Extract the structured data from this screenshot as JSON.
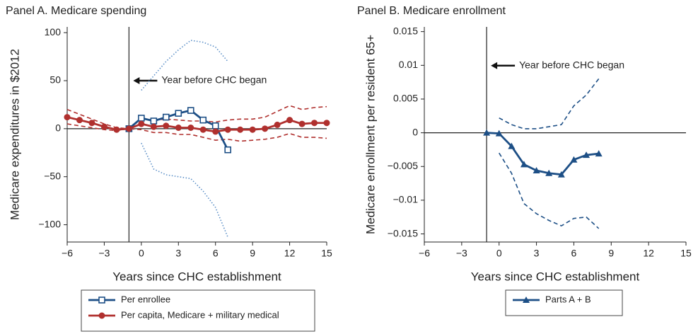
{
  "chart_data": [
    {
      "type": "line",
      "title": "Panel A. Medicare spending",
      "y_label": "Medicare expenditures in $2012",
      "x_label": "Years since CHC establishment",
      "annotation": "Year before CHC began",
      "vline": -1,
      "hline": 0,
      "xlim": [
        -6,
        15
      ],
      "ylim": [
        -118,
        106
      ],
      "xticks": [
        {
          "value": -6,
          "label": "−6"
        },
        {
          "value": -3,
          "label": "−3"
        },
        0,
        3,
        6,
        9,
        12,
        15
      ],
      "yticks": [
        {
          "value": -100,
          "label": "−100"
        },
        {
          "value": -50,
          "label": "−50"
        },
        0,
        50,
        100
      ],
      "series": [
        {
          "name": "Per enrollee",
          "color": "#1d4f86",
          "marker": "square-open",
          "ci_color": "#5b8fc7",
          "ci_style": "dotted",
          "x": [
            -1,
            0,
            1,
            2,
            3,
            4,
            5,
            6,
            7
          ],
          "values": [
            0,
            11,
            8,
            12,
            16,
            19,
            9,
            3,
            -22
          ],
          "upper": [
            null,
            40,
            55,
            70,
            82,
            92,
            90,
            85,
            70
          ],
          "lower": [
            null,
            -15,
            -42,
            -48,
            -50,
            -52,
            -65,
            -82,
            -113
          ]
        },
        {
          "name": "Per capita, Medicare + military medical",
          "color": "#b0302e",
          "marker": "circle",
          "ci_color": "#b0302e",
          "ci_style": "dashed",
          "x": [
            -6,
            -5,
            -4,
            -3,
            -2,
            -1,
            0,
            1,
            2,
            3,
            4,
            5,
            6,
            7,
            8,
            9,
            10,
            11,
            12,
            13,
            14,
            15
          ],
          "values": [
            12,
            9,
            6,
            2,
            -1,
            0,
            5,
            2,
            3,
            1,
            1,
            -1,
            -3,
            -1,
            -1,
            -1,
            0,
            4,
            9,
            5,
            6,
            6
          ],
          "upper": [
            20,
            15,
            10,
            5,
            1,
            0,
            10,
            9,
            10,
            9,
            8,
            8,
            7,
            9,
            10,
            10,
            12,
            18,
            24,
            20,
            22,
            23
          ],
          "lower": [
            5,
            3,
            1,
            -1,
            -2,
            0,
            -1,
            -4,
            -4,
            -6,
            -6,
            -9,
            -12,
            -11,
            -13,
            -12,
            -11,
            -9,
            -5,
            -9,
            -9,
            -10
          ]
        }
      ]
    },
    {
      "type": "line",
      "title": "Panel B. Medicare enrollment",
      "y_label": "Medicare enrollment per resident 65+",
      "x_label": "Years since CHC establishment",
      "annotation": "Year before CHC began",
      "vline": -1,
      "hline": 0,
      "xlim": [
        -6,
        15
      ],
      "ylim": [
        -0.0162,
        0.0157
      ],
      "xticks": [
        {
          "value": -6,
          "label": "−6"
        },
        {
          "value": -3,
          "label": "−3"
        },
        0,
        3,
        6,
        9,
        12,
        15
      ],
      "yticks": [
        {
          "value": -0.015,
          "label": "−0.015"
        },
        {
          "value": -0.01,
          "label": "−0.01"
        },
        {
          "value": -0.005,
          "label": "−0.005"
        },
        0,
        0.005,
        0.01,
        0.015
      ],
      "series": [
        {
          "name": "Parts A + B",
          "color": "#1d4f86",
          "marker": "triangle",
          "ci_color": "#1d4f86",
          "ci_style": "dashed",
          "x": [
            -1,
            0,
            1,
            2,
            3,
            4,
            5,
            6,
            7,
            8
          ],
          "values": [
            0,
            -0.0001,
            -0.002,
            -0.0047,
            -0.0056,
            -0.006,
            -0.0062,
            -0.004,
            -0.0033,
            -0.0031
          ],
          "upper": [
            null,
            0.0022,
            0.0012,
            0.0006,
            0.0006,
            0.0009,
            0.0012,
            0.004,
            0.0056,
            0.008
          ],
          "lower": [
            null,
            -0.003,
            -0.006,
            -0.0105,
            -0.012,
            -0.013,
            -0.0138,
            -0.0127,
            -0.0125,
            -0.0142
          ]
        }
      ]
    }
  ]
}
